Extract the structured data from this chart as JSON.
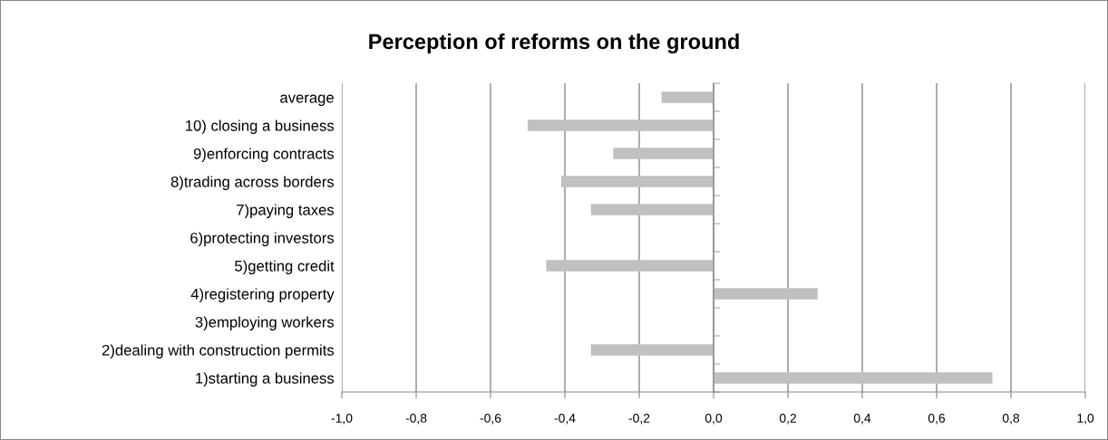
{
  "chart_data": {
    "type": "bar",
    "orientation": "horizontal",
    "title": "Perception of reforms on the ground",
    "categories": [
      "average",
      "10) closing a business",
      "9)enforcing contracts",
      "8)trading across borders",
      "7)paying taxes",
      "6)protecting investors",
      "5)getting credit",
      "4)registering property",
      "3)employing workers",
      "2)dealing with construction permits",
      "1)starting a business"
    ],
    "values": [
      -0.14,
      -0.5,
      -0.27,
      -0.41,
      -0.33,
      0,
      -0.45,
      0.28,
      0,
      -0.33,
      0.75
    ],
    "color": "#c0c0c0",
    "xlim": [
      -1.0,
      1.0
    ],
    "xticks": [
      {
        "value": -1.0,
        "label": "-1,0"
      },
      {
        "value": -0.8,
        "label": "-0,8"
      },
      {
        "value": -0.6,
        "label": "-0,6"
      },
      {
        "value": -0.4,
        "label": "-0,4"
      },
      {
        "value": -0.2,
        "label": "-0,2"
      },
      {
        "value": 0.0,
        "label": "0,0"
      },
      {
        "value": 0.2,
        "label": "0,2"
      },
      {
        "value": 0.4,
        "label": "0,4"
      },
      {
        "value": 0.6,
        "label": "0,6"
      },
      {
        "value": 0.8,
        "label": "0,8"
      },
      {
        "value": 1.0,
        "label": "1,0"
      }
    ],
    "grid": "x"
  }
}
